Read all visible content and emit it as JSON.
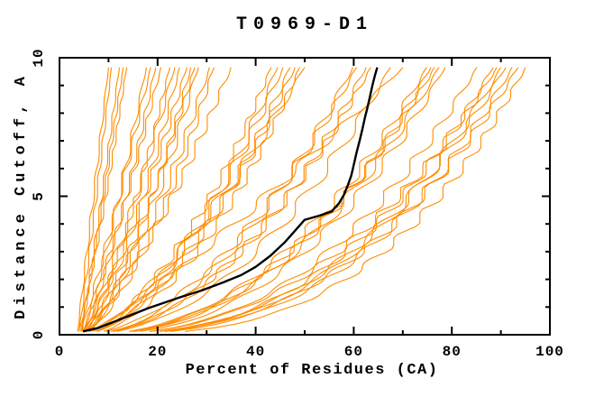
{
  "page": {
    "background": "#ffffff"
  },
  "chart_data": {
    "type": "line",
    "title": "T0969-D1",
    "xlabel": "Percent of Residues (CA)",
    "ylabel": "Distance Cutoff, A",
    "xlim": [
      0,
      100
    ],
    "ylim": [
      0,
      10
    ],
    "x_major_ticks": [
      0,
      20,
      40,
      60,
      80,
      100
    ],
    "x_minor_ticks": [
      10,
      30,
      50,
      70,
      90
    ],
    "y_major_ticks": [
      0,
      5,
      10
    ],
    "y_minor_ticks": [
      1,
      2,
      3,
      4,
      6,
      7,
      8,
      9
    ],
    "grid": false,
    "legend": "none",
    "axis_color": "#000000",
    "curve_top_cutoff": 9.65,
    "curve_start_cutoff": 0.12,
    "model_curve_count": 45,
    "highlighted_model": {
      "color": "#000000",
      "points": [
        [
          4.8,
          0.12
        ],
        [
          8,
          0.25
        ],
        [
          13,
          0.6
        ],
        [
          18,
          0.95
        ],
        [
          24.5,
          1.35
        ],
        [
          29,
          1.6
        ],
        [
          33.5,
          1.9
        ],
        [
          37,
          2.15
        ],
        [
          40,
          2.45
        ],
        [
          43,
          2.85
        ],
        [
          46,
          3.35
        ],
        [
          48,
          3.75
        ],
        [
          50,
          4.15
        ],
        [
          53,
          4.3
        ],
        [
          55.5,
          4.45
        ],
        [
          57,
          4.75
        ],
        [
          58,
          5.05
        ],
        [
          58.8,
          5.4
        ],
        [
          59.5,
          5.75
        ],
        [
          60.1,
          6.2
        ],
        [
          60.6,
          6.6
        ],
        [
          61.2,
          7.0
        ],
        [
          61.8,
          7.45
        ],
        [
          62.3,
          7.85
        ],
        [
          62.8,
          8.2
        ],
        [
          63.3,
          8.6
        ],
        [
          63.8,
          9.0
        ],
        [
          64.3,
          9.35
        ],
        [
          64.8,
          9.65
        ]
      ]
    },
    "model_curves": {
      "color": "#ff8c00",
      "columns": [
        "percent_at_cutoff_0",
        "percent_at_cutoff_9.65",
        "shape_exponent"
      ],
      "definition": "percent(h) = start + (end - start) * (h / 9.65)^shape, h = distance cutoff in Angstroms",
      "curves": [
        [
          3.6,
          10.0,
          1.0
        ],
        [
          3.9,
          10.6,
          0.95
        ],
        [
          4.2,
          12.2,
          0.92
        ],
        [
          4.5,
          13.0,
          1.0
        ],
        [
          3.8,
          13.7,
          0.88
        ],
        [
          4.6,
          17.7,
          0.85
        ],
        [
          4.1,
          18.6,
          0.9
        ],
        [
          4.8,
          19.6,
          0.82
        ],
        [
          4.3,
          20.7,
          0.86
        ],
        [
          5.0,
          22.5,
          0.78
        ],
        [
          4.2,
          23.5,
          0.8
        ],
        [
          4.7,
          24.5,
          0.74
        ],
        [
          4.0,
          26.0,
          0.78
        ],
        [
          5.2,
          26.8,
          0.72
        ],
        [
          4.4,
          27.6,
          0.75
        ],
        [
          4.9,
          28.3,
          0.7
        ],
        [
          4.1,
          30.6,
          0.7
        ],
        [
          4.6,
          31.5,
          0.67
        ],
        [
          5.0,
          35.0,
          0.8
        ],
        [
          3.9,
          43.2,
          0.6
        ],
        [
          4.4,
          44.5,
          0.58
        ],
        [
          4.9,
          45.6,
          0.62
        ],
        [
          4.2,
          47.0,
          0.57
        ],
        [
          4.7,
          48.0,
          0.6
        ],
        [
          5.1,
          49.0,
          0.56
        ],
        [
          4.3,
          50.0,
          0.7
        ],
        [
          4.8,
          59.8,
          0.52
        ],
        [
          4.1,
          60.6,
          0.54
        ],
        [
          4.6,
          62.5,
          0.5
        ],
        [
          5.0,
          63.5,
          0.52
        ],
        [
          4.4,
          67.5,
          0.49
        ],
        [
          4.8,
          70.0,
          0.85
        ],
        [
          4.2,
          74.9,
          0.45
        ],
        [
          4.7,
          75.7,
          0.43
        ],
        [
          5.1,
          76.5,
          0.46
        ],
        [
          4.4,
          77.4,
          0.44
        ],
        [
          4.9,
          78.6,
          0.42
        ],
        [
          4.3,
          85.1,
          0.4
        ],
        [
          4.8,
          88.4,
          0.38
        ],
        [
          4.2,
          89.2,
          0.41
        ],
        [
          4.6,
          90.0,
          0.37
        ],
        [
          5.0,
          91.0,
          0.39
        ],
        [
          4.4,
          92.3,
          0.36
        ],
        [
          4.8,
          93.5,
          0.38
        ],
        [
          4.3,
          95.0,
          0.33
        ]
      ]
    }
  }
}
